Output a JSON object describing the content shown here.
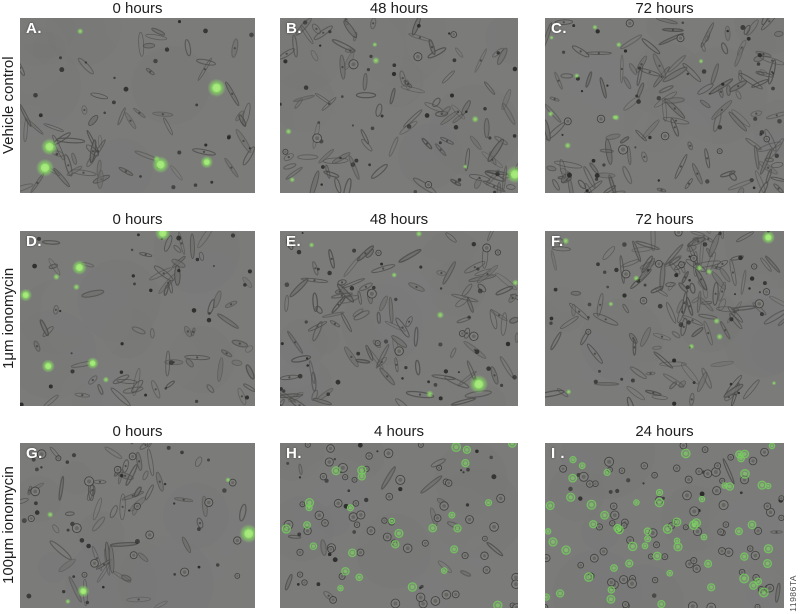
{
  "figure": {
    "watermark": "11986TA",
    "colors": {
      "micrograph_bg": "#7b7b79",
      "fluorescence_bright": "#86dd60",
      "fluorescence_dim": "#6cc45a",
      "header_text": "#1e1e1e",
      "panel_letter": "#ffffff",
      "watermark_text": "#4d4d4d"
    },
    "rows": [
      {
        "label": "Vehicle control",
        "panels": [
          {
            "letter": "A.",
            "time": "0 hours",
            "texture": {
              "seed": 101,
              "spindles": 60,
              "dots": 26,
              "rounds": 0,
              "green_bright": 5,
              "green_small": 2,
              "green_rings": 0,
              "clusters": 3
            }
          },
          {
            "letter": "B.",
            "time": "48 hours",
            "texture": {
              "seed": 202,
              "spindles": 95,
              "dots": 40,
              "rounds": 6,
              "green_bright": 1,
              "green_small": 6,
              "green_rings": 0,
              "clusters": 4
            }
          },
          {
            "letter": "C.",
            "time": "72 hours",
            "texture": {
              "seed": 303,
              "spindles": 130,
              "dots": 42,
              "rounds": 8,
              "green_bright": 0,
              "green_small": 9,
              "green_rings": 0,
              "clusters": 5
            }
          }
        ]
      },
      {
        "label": "1μm ionomycin",
        "panels": [
          {
            "letter": "D.",
            "time": "0 hours",
            "texture": {
              "seed": 404,
              "spindles": 62,
              "dots": 30,
              "rounds": 0,
              "green_bright": 5,
              "green_small": 3,
              "green_rings": 0,
              "clusters": 3
            }
          },
          {
            "letter": "E.",
            "time": "48 hours",
            "texture": {
              "seed": 505,
              "spindles": 105,
              "dots": 42,
              "rounds": 8,
              "green_bright": 1,
              "green_small": 6,
              "green_rings": 0,
              "clusters": 5
            }
          },
          {
            "letter": "F.",
            "time": "72 hours",
            "texture": {
              "seed": 606,
              "spindles": 130,
              "dots": 42,
              "rounds": 10,
              "green_bright": 1,
              "green_small": 10,
              "green_rings": 0,
              "clusters": 5
            }
          }
        ]
      },
      {
        "label": "100μm ionomycin",
        "panels": [
          {
            "letter": "G.",
            "time": "0 hours",
            "texture": {
              "seed": 707,
              "spindles": 55,
              "dots": 30,
              "rounds": 18,
              "green_bright": 2,
              "green_small": 3,
              "green_rings": 0,
              "clusters": 3
            }
          },
          {
            "letter": "H.",
            "time": "4 hours",
            "texture": {
              "seed": 808,
              "spindles": 14,
              "dots": 26,
              "rounds": 60,
              "green_bright": 0,
              "green_small": 0,
              "green_rings": 28,
              "clusters": 4
            }
          },
          {
            "letter": "I .",
            "time": "24 hours",
            "texture": {
              "seed": 909,
              "spindles": 5,
              "dots": 16,
              "rounds": 80,
              "green_bright": 0,
              "green_small": 0,
              "green_rings": 60,
              "clusters": 4
            }
          }
        ]
      }
    ]
  }
}
